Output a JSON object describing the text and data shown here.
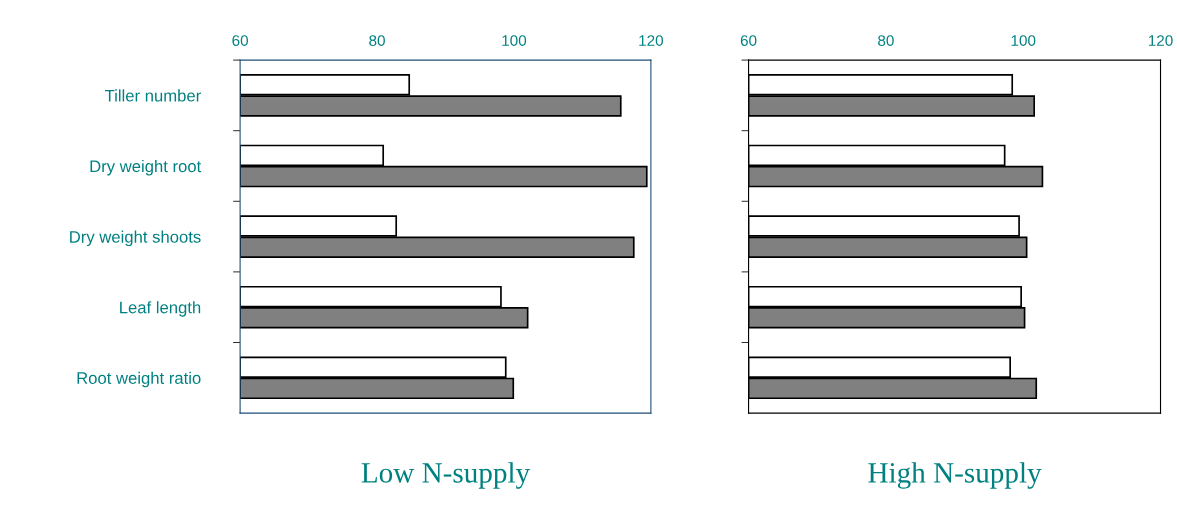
{
  "chart_data": [
    {
      "type": "bar",
      "orientation": "horizontal",
      "title": "Low N-supply",
      "categories": [
        "Tiller number",
        "Dry weight root",
        "Dry weight shoots",
        "Leaf length",
        "Root weight ratio"
      ],
      "series": [
        {
          "color": "#ffffff",
          "values": [
            84.7,
            80.9,
            82.8,
            98.1,
            98.8
          ]
        },
        {
          "color": "#808080",
          "values": [
            115.6,
            119.4,
            117.5,
            102.0,
            99.9
          ]
        }
      ],
      "xlim": [
        60,
        120
      ],
      "xticks": [
        60,
        80,
        100,
        120
      ],
      "grid": false,
      "legend": false
    },
    {
      "type": "bar",
      "orientation": "horizontal",
      "title": "High N-supply",
      "categories": [
        null,
        null,
        null,
        null,
        null
      ],
      "series": [
        {
          "color": "#ffffff",
          "values": [
            98.4,
            97.3,
            99.4,
            99.7,
            98.1
          ]
        },
        {
          "color": "#808080",
          "values": [
            101.6,
            102.8,
            100.5,
            100.2,
            101.9
          ]
        }
      ],
      "xlim": [
        60,
        120
      ],
      "xticks": [
        60,
        80,
        100,
        120
      ],
      "grid": false,
      "legend": false
    }
  ]
}
